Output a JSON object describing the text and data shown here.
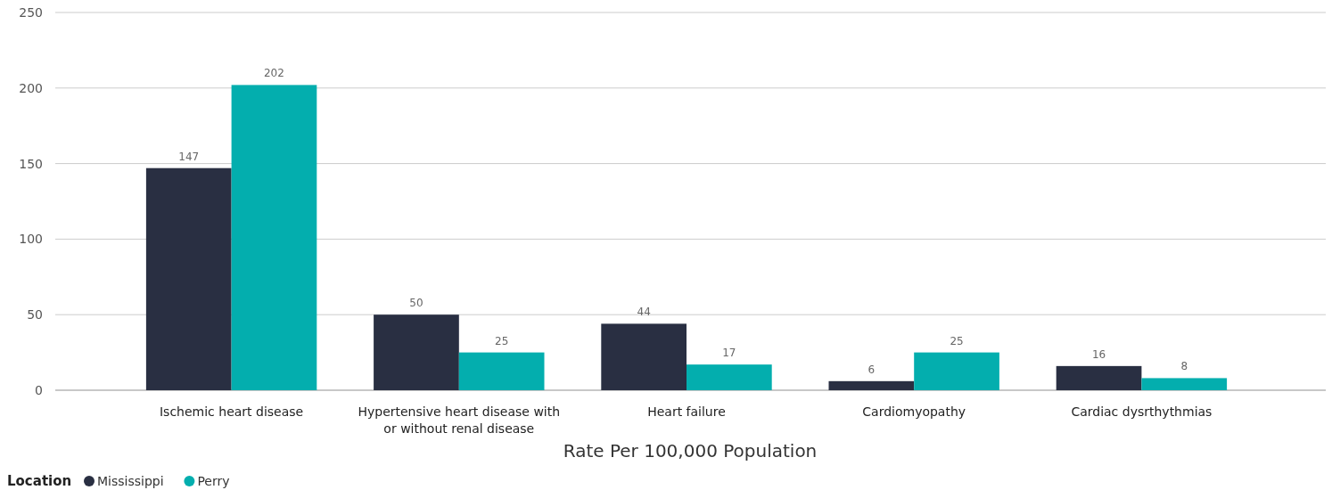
{
  "chart_data": {
    "type": "bar",
    "xlabel": "Rate Per 100,000 Population",
    "legend_title": "Location",
    "categories": [
      "Ischemic heart disease",
      "Hypertensive heart disease with or without renal disease",
      "Heart failure",
      "Cardiomyopathy",
      "Cardiac dysrthythmias"
    ],
    "series": [
      {
        "name": "Mississippi",
        "color": "#292f42",
        "values": [
          147,
          50,
          44,
          6,
          16
        ]
      },
      {
        "name": "Perry",
        "color": "#03aeae",
        "values": [
          202,
          25,
          17,
          25,
          8
        ]
      }
    ],
    "ylim": [
      0,
      250
    ],
    "yticks": [
      0,
      50,
      100,
      150,
      200,
      250
    ],
    "grid": "y",
    "legend": "bottom left",
    "data_labels": true
  }
}
